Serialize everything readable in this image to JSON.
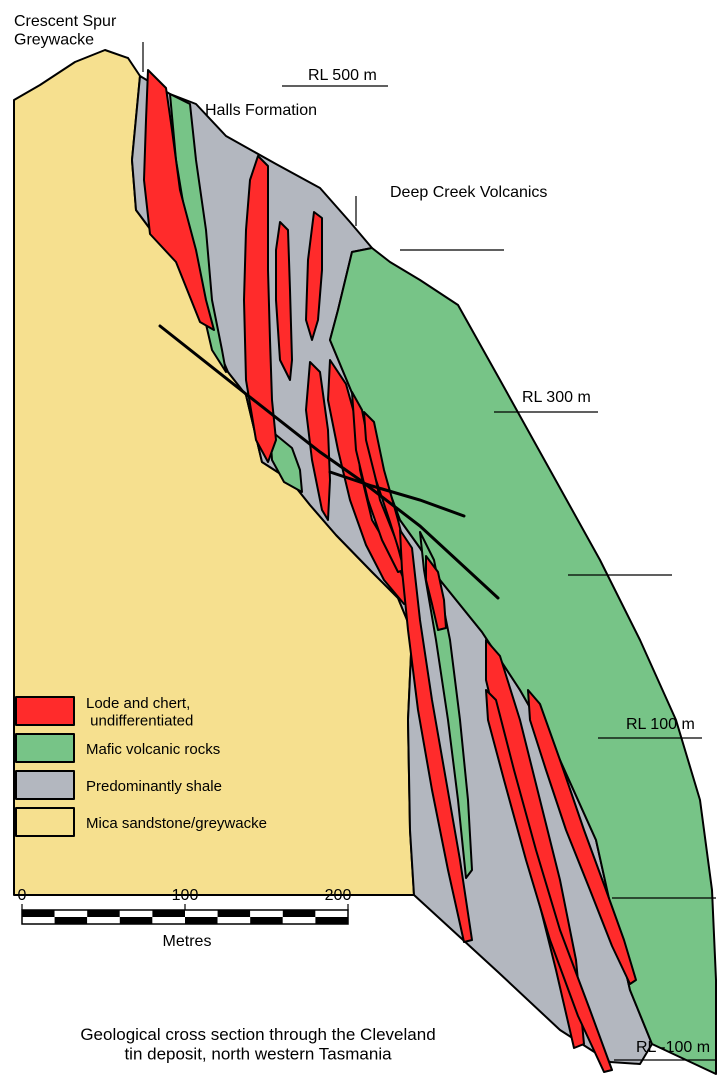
{
  "colors": {
    "lode": "#ff2b2b",
    "mafic": "#77c487",
    "shale": "#b3b7bf",
    "sandstone": "#f6e08f"
  },
  "units": {
    "crescent_spur": "Crescent Spur\nGreywacke",
    "halls": "Halls Formation",
    "deep_creek": "Deep Creek Volcanics"
  },
  "levels": {
    "rl500": "RL 500 m",
    "rl300": "RL 300 m",
    "rl100": "RL 100 m",
    "rl_neg100": "RL -100 m"
  },
  "legend": [
    {
      "label": "Lode and chert,\n undifferentiated",
      "color_key": "lode"
    },
    {
      "label": "Mafic volcanic rocks",
      "color_key": "mafic"
    },
    {
      "label": "Predominantly shale",
      "color_key": "shale"
    },
    {
      "label": "Mica sandstone/greywacke",
      "color_key": "sandstone"
    }
  ],
  "scale": {
    "ticks": [
      "0",
      "100",
      "200"
    ],
    "unit_label": "Metres"
  },
  "caption": "Geological cross section through the Cleveland\ntin deposit, north western Tasmania"
}
